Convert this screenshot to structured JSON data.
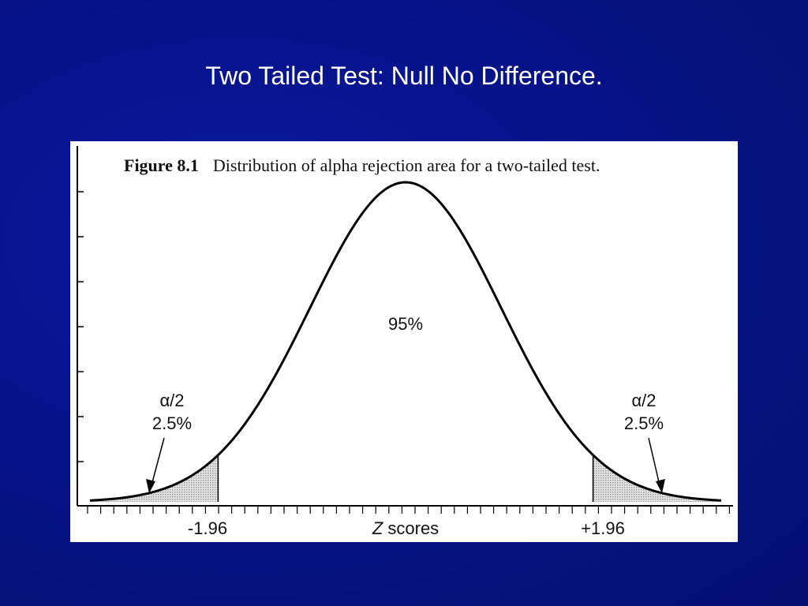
{
  "slide": {
    "title": "Two Tailed Test: Null No Difference."
  },
  "figure": {
    "number": "Figure 8.1",
    "caption": "Distribution of alpha rejection area for a two-tailed test."
  },
  "chart_data": {
    "type": "area",
    "distribution": "normal",
    "center_label": "95%",
    "xlabel_italic": "Z",
    "xlabel_rest": " scores",
    "critical_values": [
      {
        "label": "-1.96",
        "z": -1.96
      },
      {
        "label": "+1.96",
        "z": 1.96
      }
    ],
    "tails": [
      {
        "side": "left",
        "symbol": "α/2",
        "percent": "2.5%"
      },
      {
        "side": "right",
        "symbol": "α/2",
        "percent": "2.5%"
      }
    ],
    "xlim": [
      -3.3,
      3.3
    ],
    "colors": {
      "curve": "#000000",
      "tail_fill": "#cfcfcf",
      "background": "#06138a"
    }
  }
}
